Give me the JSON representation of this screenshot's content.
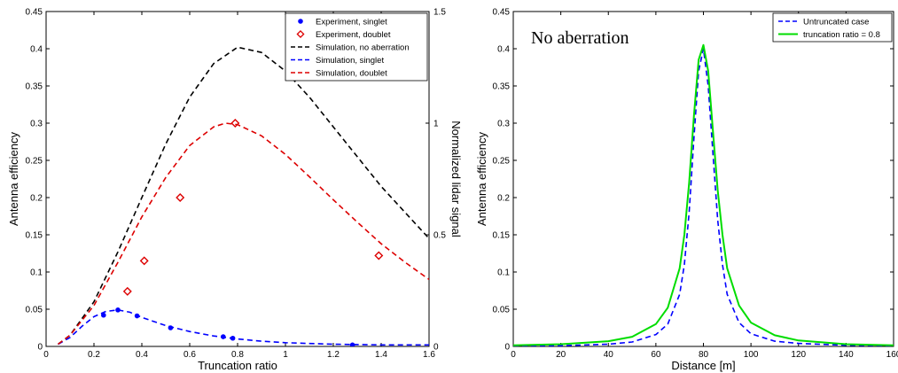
{
  "chart_data": [
    {
      "type": "line",
      "xlabel": "Truncation ratio",
      "ylabel": "Antenna efficiency",
      "y2label": "Normalized lidar signal",
      "xlim": [
        0,
        1.6
      ],
      "ylim": [
        0,
        0.45
      ],
      "y2lim": [
        0,
        1.5
      ],
      "xticks": [
        "0",
        "0.2",
        "0.4",
        "0.6",
        "0.8",
        "1",
        "1.2",
        "1.4",
        "1.6"
      ],
      "yticks": [
        "0",
        "0.05",
        "0.1",
        "0.15",
        "0.2",
        "0.25",
        "0.3",
        "0.35",
        "0.4",
        "0.45"
      ],
      "y2ticks": [
        "0",
        "0.5",
        "1",
        "1.5"
      ],
      "legend_position": "top-right",
      "series": [
        {
          "name": "Experiment, singlet",
          "kind": "scatter",
          "marker": "dot",
          "color": "#0000ff",
          "axis": "left",
          "x": [
            0.24,
            0.3,
            0.38,
            0.52,
            0.74,
            0.78,
            1.28
          ],
          "y": [
            0.042,
            0.049,
            0.041,
            0.025,
            0.013,
            0.011,
            0.002
          ]
        },
        {
          "name": "Experiment, doublet",
          "kind": "scatter",
          "marker": "diamond",
          "color": "#dd0000",
          "axis": "left",
          "x": [
            0.34,
            0.41,
            0.56,
            0.79,
            1.39
          ],
          "y": [
            0.074,
            0.115,
            0.2,
            0.3,
            0.122
          ]
        },
        {
          "name": "Simulation, no aberration",
          "kind": "line",
          "style": "dashed",
          "color": "#000000",
          "axis": "left",
          "x": [
            0.05,
            0.1,
            0.2,
            0.3,
            0.4,
            0.5,
            0.6,
            0.7,
            0.8,
            0.9,
            1.0,
            1.1,
            1.2,
            1.3,
            1.4,
            1.5,
            1.6
          ],
          "y": [
            0.003,
            0.015,
            0.06,
            0.127,
            0.2,
            0.272,
            0.335,
            0.38,
            0.402,
            0.395,
            0.37,
            0.335,
            0.295,
            0.255,
            0.215,
            0.18,
            0.145
          ]
        },
        {
          "name": "Simulation, singlet",
          "kind": "line",
          "style": "dashed",
          "color": "#0000ff",
          "axis": "left",
          "x": [
            0.05,
            0.1,
            0.15,
            0.2,
            0.25,
            0.3,
            0.35,
            0.4,
            0.5,
            0.6,
            0.7,
            0.8,
            0.9,
            1.0,
            1.2,
            1.4,
            1.6
          ],
          "y": [
            0.003,
            0.012,
            0.027,
            0.04,
            0.047,
            0.049,
            0.046,
            0.039,
            0.028,
            0.02,
            0.014,
            0.01,
            0.007,
            0.005,
            0.003,
            0.002,
            0.002
          ]
        },
        {
          "name": "Simulation, doublet",
          "kind": "line",
          "style": "dashed",
          "color": "#dd0000",
          "axis": "left",
          "x": [
            0.05,
            0.1,
            0.2,
            0.3,
            0.4,
            0.5,
            0.6,
            0.7,
            0.75,
            0.8,
            0.9,
            1.0,
            1.1,
            1.2,
            1.3,
            1.4,
            1.5,
            1.6
          ],
          "y": [
            0.003,
            0.015,
            0.055,
            0.113,
            0.174,
            0.227,
            0.27,
            0.295,
            0.3,
            0.298,
            0.283,
            0.258,
            0.228,
            0.197,
            0.167,
            0.138,
            0.113,
            0.09
          ]
        }
      ]
    },
    {
      "type": "line",
      "title": "No aberration",
      "xlabel": "Distance [m]",
      "ylabel": "Antenna efficiency",
      "xlim": [
        0,
        160
      ],
      "ylim": [
        0,
        0.45
      ],
      "xticks": [
        "0",
        "20",
        "40",
        "60",
        "80",
        "100",
        "120",
        "140",
        "160"
      ],
      "yticks": [
        "0",
        "0.05",
        "0.1",
        "0.15",
        "0.2",
        "0.25",
        "0.3",
        "0.35",
        "0.4",
        "0.45"
      ],
      "legend_position": "top-right",
      "series": [
        {
          "name": "Untruncated case",
          "kind": "line",
          "style": "dashed",
          "color": "#0000ff",
          "x": [
            0,
            20,
            40,
            50,
            60,
            65,
            70,
            72,
            74,
            76,
            78,
            80,
            82,
            84,
            86,
            88,
            90,
            95,
            100,
            110,
            120,
            140,
            160
          ],
          "y": [
            0.0005,
            0.001,
            0.003,
            0.006,
            0.016,
            0.03,
            0.07,
            0.11,
            0.18,
            0.28,
            0.37,
            0.4,
            0.35,
            0.26,
            0.17,
            0.11,
            0.07,
            0.032,
            0.017,
            0.007,
            0.004,
            0.0015,
            0.0008
          ]
        },
        {
          "name": "truncation ratio = 0.8",
          "kind": "line",
          "style": "solid",
          "color": "#00dd00",
          "x": [
            0,
            20,
            40,
            50,
            60,
            65,
            70,
            72,
            74,
            76,
            78,
            80,
            82,
            84,
            86,
            88,
            90,
            95,
            100,
            110,
            120,
            140,
            160
          ],
          "y": [
            0.0015,
            0.003,
            0.007,
            0.013,
            0.03,
            0.052,
            0.105,
            0.15,
            0.22,
            0.31,
            0.385,
            0.405,
            0.37,
            0.29,
            0.21,
            0.15,
            0.105,
            0.055,
            0.032,
            0.015,
            0.008,
            0.003,
            0.0015
          ]
        }
      ]
    }
  ]
}
